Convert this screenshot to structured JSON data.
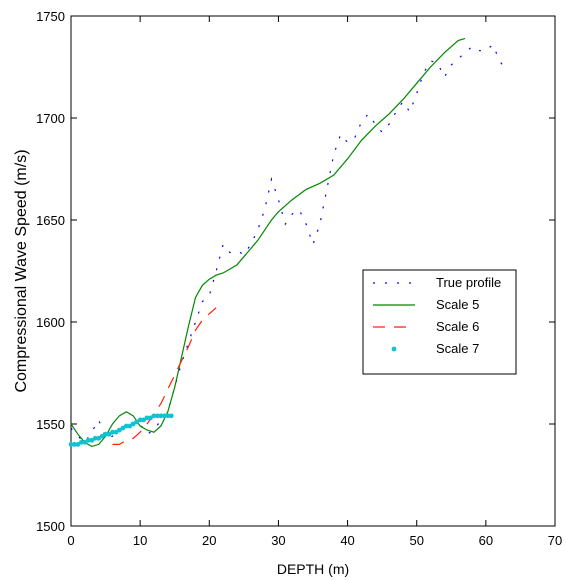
{
  "chart_data": {
    "type": "line",
    "title": "",
    "xlabel": "DEPTH (m)",
    "ylabel": "Compressional Wave Speed (m/s)",
    "xlim": [
      0,
      70
    ],
    "ylim": [
      1500,
      1750
    ],
    "xticks": [
      0,
      10,
      20,
      30,
      40,
      50,
      60,
      70
    ],
    "yticks": [
      1500,
      1550,
      1600,
      1650,
      1700,
      1750
    ],
    "grid": false,
    "legend_position": "center-right",
    "series": [
      {
        "name": "True profile",
        "style": "dotted",
        "color": "#0000ff",
        "x": [
          0,
          1,
          2,
          3,
          4,
          5,
          6,
          7,
          8,
          9,
          10,
          11,
          12,
          13,
          14,
          15,
          16,
          17,
          18,
          19,
          20,
          21,
          22,
          23,
          24,
          25,
          26,
          27,
          28,
          29,
          30,
          31,
          32,
          33,
          34,
          35,
          36,
          37,
          38,
          39,
          40,
          41,
          42,
          43,
          44,
          45,
          46,
          47,
          48,
          49,
          50,
          51,
          52,
          53,
          54,
          55,
          56,
          57,
          58,
          59,
          60,
          61,
          62,
          63
        ],
        "y": [
          1548,
          1544,
          1541,
          1546,
          1552,
          1543,
          1544,
          1547,
          1549,
          1551,
          1550,
          1545,
          1547,
          1552,
          1556,
          1568,
          1580,
          1590,
          1600,
          1610,
          1613,
          1625,
          1638,
          1634,
          1635,
          1633,
          1638,
          1645,
          1655,
          1670,
          1660,
          1648,
          1653,
          1655,
          1648,
          1638,
          1648,
          1665,
          1682,
          1692,
          1688,
          1690,
          1698,
          1702,
          1697,
          1693,
          1697,
          1703,
          1708,
          1703,
          1712,
          1722,
          1728,
          1727,
          1720,
          1726,
          1729,
          1732,
          1735,
          1733,
          1733,
          1736,
          1728,
          1723
        ]
      },
      {
        "name": "Scale 5",
        "style": "solid",
        "color": "#008800",
        "x": [
          0,
          1,
          2,
          3,
          4,
          5,
          6,
          7,
          8,
          9,
          10,
          11,
          12,
          13,
          14,
          15,
          16,
          17,
          18,
          19,
          20,
          21,
          22,
          23,
          24,
          25,
          26,
          27,
          28,
          29,
          30,
          32,
          34,
          36,
          38,
          40,
          42,
          44,
          46,
          48,
          50,
          52,
          54,
          56,
          57
        ],
        "y": [
          1550,
          1545,
          1541,
          1539,
          1540,
          1544,
          1550,
          1554,
          1556,
          1554,
          1549,
          1547,
          1546,
          1549,
          1556,
          1568,
          1583,
          1598,
          1612,
          1618,
          1621,
          1623,
          1624,
          1626,
          1628,
          1632,
          1636,
          1640,
          1645,
          1650,
          1654,
          1660,
          1665,
          1668,
          1672,
          1680,
          1689,
          1696,
          1702,
          1709,
          1717,
          1725,
          1732,
          1738,
          1739
        ]
      },
      {
        "name": "Scale 6",
        "style": "dashed",
        "color": "#ff2200",
        "x": [
          6,
          7,
          8,
          9,
          10,
          11,
          12,
          13,
          14,
          15,
          16,
          17,
          18,
          19,
          20,
          21
        ],
        "y": [
          1540,
          1540,
          1542,
          1543,
          1546,
          1550,
          1555,
          1560,
          1567,
          1574,
          1581,
          1588,
          1596,
          1601,
          1604,
          1607
        ]
      },
      {
        "name": "Scale 7",
        "style": "markers",
        "color": "#11c3d0",
        "x": [
          0,
          0.5,
          1,
          1.5,
          2,
          2.5,
          3,
          3.5,
          4,
          4.5,
          5,
          5.5,
          6,
          6.5,
          7,
          7.5,
          8,
          8.5,
          9,
          9.5,
          10,
          10.5,
          11,
          11.5,
          12,
          12.5,
          13,
          13.5,
          14,
          14.5
        ],
        "y": [
          1540,
          1540,
          1540,
          1541,
          1541,
          1542,
          1542,
          1543,
          1543,
          1544,
          1545,
          1545,
          1546,
          1546,
          1547,
          1548,
          1549,
          1549,
          1550,
          1551,
          1552,
          1552,
          1553,
          1553,
          1554,
          1554,
          1554,
          1554,
          1554,
          1554
        ]
      }
    ]
  }
}
